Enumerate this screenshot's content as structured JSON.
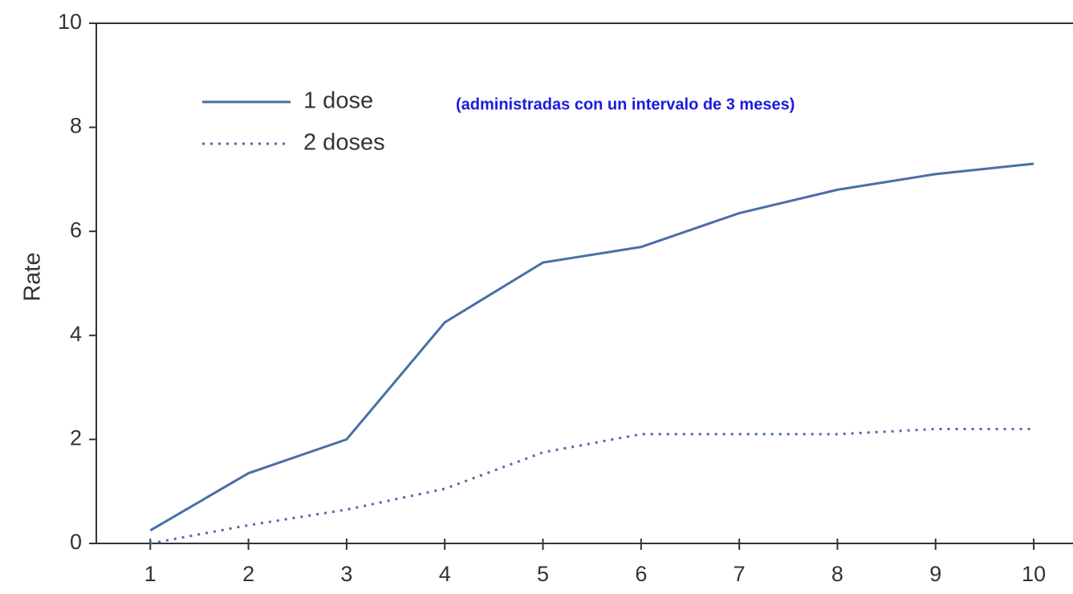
{
  "chart_data": {
    "type": "line",
    "y_label": "Rate",
    "annotation": "(administradas con un intervalo de 3 meses)",
    "x": [
      1,
      2,
      3,
      4,
      5,
      6,
      7,
      8,
      9,
      10
    ],
    "series": [
      {
        "name": "1 dose",
        "color": "#4a6ea8",
        "dash": "solid",
        "values": [
          0.25,
          1.35,
          2,
          4.25,
          5.4,
          5.7,
          6.35,
          6.8,
          7.1,
          7.3
        ]
      },
      {
        "name": "2 doses",
        "color": "#4a6ea8",
        "dash": "dotted",
        "values": [
          0,
          0.35,
          0.65,
          1.05,
          1.75,
          2.1,
          2.1,
          2.1,
          2.2,
          2.2
        ]
      }
    ],
    "xlim": [
      0.45,
      10.4
    ],
    "ylim": [
      0,
      10
    ],
    "xticks": [
      1,
      2,
      3,
      4,
      5,
      6,
      7,
      8,
      9,
      10
    ],
    "yticks": [
      0,
      2,
      4,
      6,
      8,
      10
    ],
    "legend": "upper left"
  }
}
